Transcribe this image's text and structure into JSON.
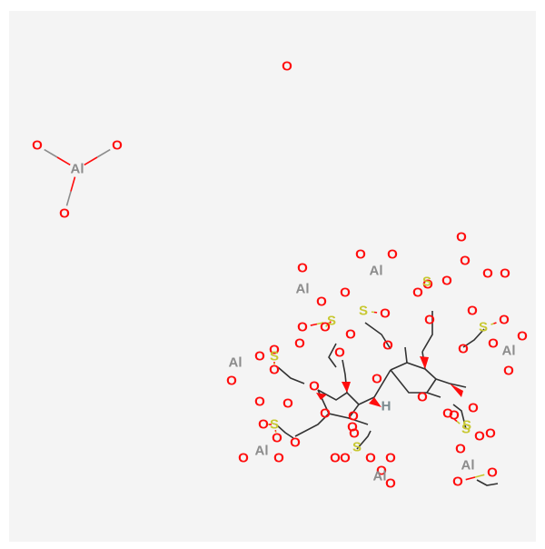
{
  "colors": {
    "background": "#f4f4f4",
    "oxygen": "#ff0d0d",
    "aluminium": "#8c8c8c",
    "sulfur": "#c8c832",
    "hydrogen": "#7a8a8f",
    "bond": "#333333"
  },
  "atoms": [
    {
      "el": "O"
    },
    {
      "el": "O"
    },
    {
      "el": "O"
    },
    {
      "el": "Al"
    },
    {
      "el": "O"
    },
    {
      "el": "O"
    },
    {
      "el": "O"
    },
    {
      "el": "O"
    },
    {
      "el": "O"
    },
    {
      "el": "O"
    },
    {
      "el": "O"
    },
    {
      "el": "Al"
    },
    {
      "el": "O"
    },
    {
      "el": "Al"
    },
    {
      "el": "O"
    },
    {
      "el": "O"
    },
    {
      "el": "O"
    },
    {
      "el": "O"
    },
    {
      "el": "O"
    },
    {
      "el": "Al"
    },
    {
      "el": "O"
    },
    {
      "el": "O"
    },
    {
      "el": "O"
    },
    {
      "el": "S"
    },
    {
      "el": "S"
    },
    {
      "el": "S"
    },
    {
      "el": "S"
    },
    {
      "el": "S"
    },
    {
      "el": "O"
    },
    {
      "el": "O"
    },
    {
      "el": "O"
    },
    {
      "el": "O"
    },
    {
      "el": "O"
    },
    {
      "el": "O"
    },
    {
      "el": "O"
    },
    {
      "el": "Al"
    },
    {
      "el": "O"
    },
    {
      "el": "O"
    },
    {
      "el": "O"
    },
    {
      "el": "O"
    },
    {
      "el": "O"
    },
    {
      "el": "O"
    },
    {
      "el": "O"
    },
    {
      "el": "O"
    },
    {
      "el": "O"
    },
    {
      "el": "S"
    },
    {
      "el": "O"
    },
    {
      "el": "O"
    },
    {
      "el": "O"
    },
    {
      "el": "O"
    },
    {
      "el": "O"
    },
    {
      "el": "Al"
    },
    {
      "el": "O"
    },
    {
      "el": "O"
    },
    {
      "el": "S"
    },
    {
      "el": "O"
    },
    {
      "el": "O"
    },
    {
      "el": "O"
    },
    {
      "el": "O"
    },
    {
      "el": "O"
    },
    {
      "el": "Al"
    },
    {
      "el": "O"
    },
    {
      "el": "H"
    },
    {
      "el": "O"
    },
    {
      "el": "O"
    },
    {
      "el": "S"
    },
    {
      "el": "O"
    },
    {
      "el": "O"
    },
    {
      "el": "O"
    },
    {
      "el": "O"
    },
    {
      "el": "Al"
    },
    {
      "el": "O"
    },
    {
      "el": "O"
    },
    {
      "el": "O"
    },
    {
      "el": "O"
    },
    {
      "el": "O"
    },
    {
      "el": "O"
    },
    {
      "el": "S"
    },
    {
      "el": "O"
    },
    {
      "el": "O"
    }
  ]
}
